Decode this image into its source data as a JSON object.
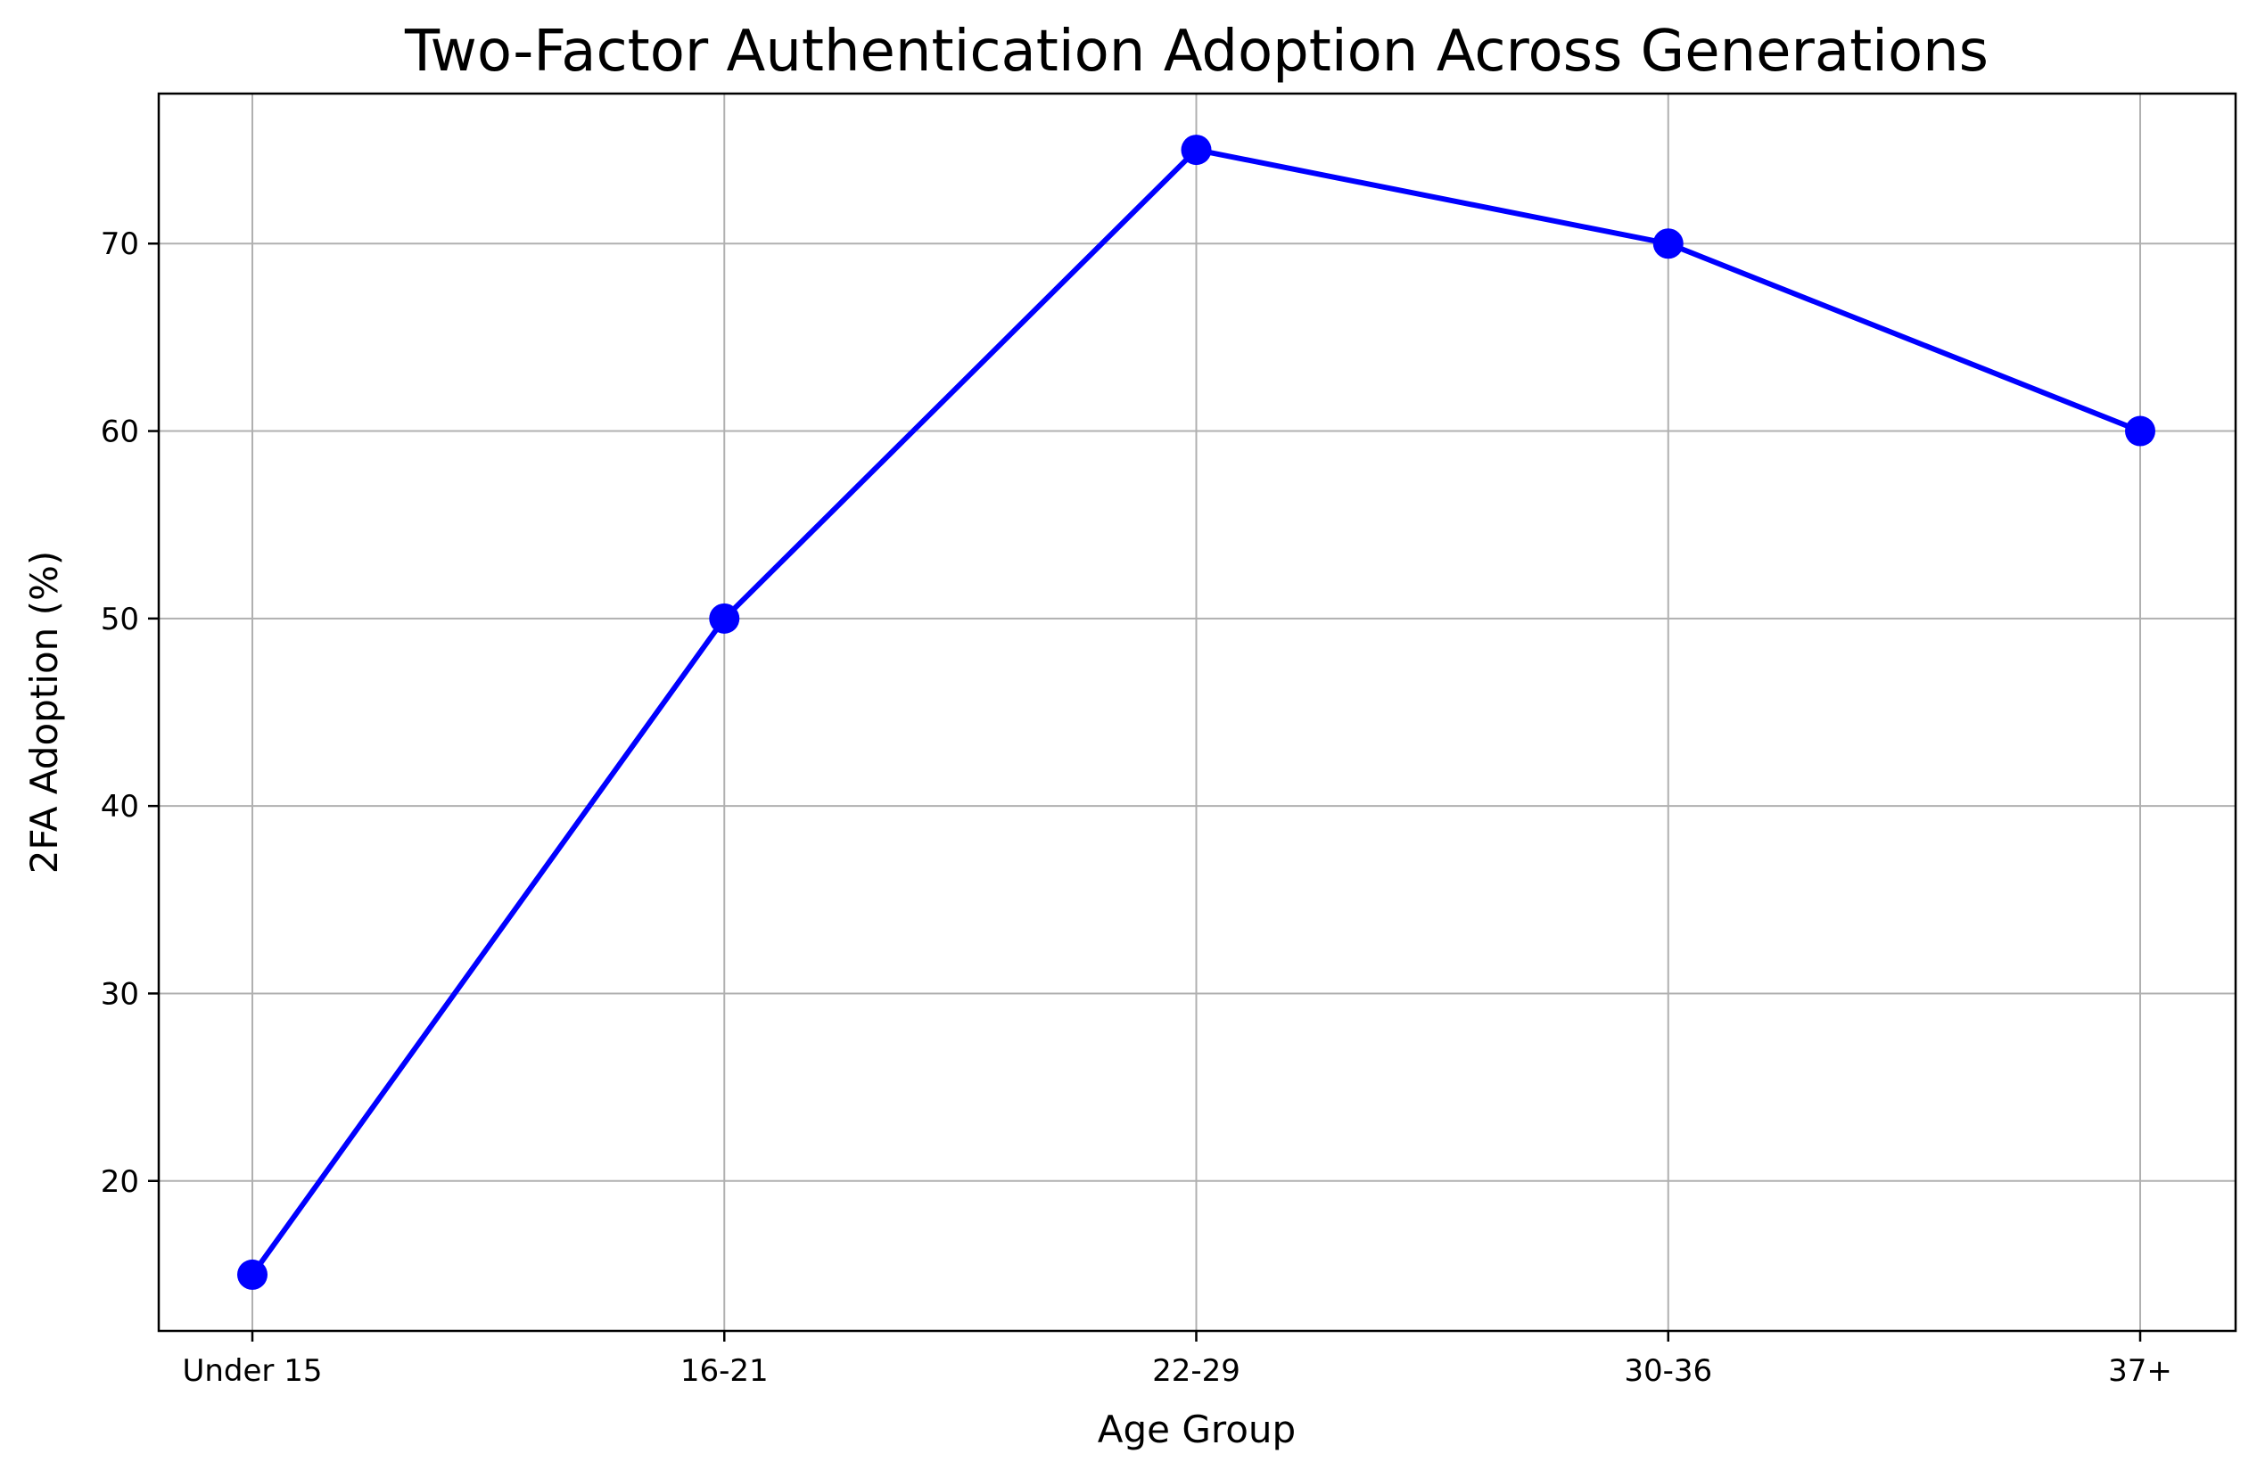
{
  "chart_data": {
    "type": "line",
    "title": "Two-Factor Authentication Adoption Across Generations",
    "xlabel": "Age Group",
    "ylabel": "2FA Adoption (%)",
    "categories": [
      "Under 15",
      "16-21",
      "22-29",
      "30-36",
      "37+"
    ],
    "series": [
      {
        "values": [
          15,
          50,
          75,
          70,
          60
        ],
        "color": "#0000ff"
      }
    ],
    "ylim": [
      12,
      78
    ],
    "yticks": [
      20,
      30,
      40,
      50,
      60,
      70
    ],
    "grid": true,
    "marker": "circle"
  }
}
